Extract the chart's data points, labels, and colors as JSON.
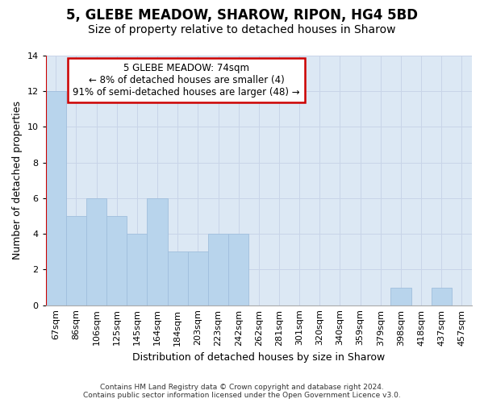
{
  "title": "5, GLEBE MEADOW, SHAROW, RIPON, HG4 5BD",
  "subtitle": "Size of property relative to detached houses in Sharow",
  "xlabel": "Distribution of detached houses by size in Sharow",
  "ylabel": "Number of detached properties",
  "categories": [
    "67sqm",
    "86sqm",
    "106sqm",
    "125sqm",
    "145sqm",
    "164sqm",
    "184sqm",
    "203sqm",
    "223sqm",
    "242sqm",
    "262sqm",
    "281sqm",
    "301sqm",
    "320sqm",
    "340sqm",
    "359sqm",
    "379sqm",
    "398sqm",
    "418sqm",
    "437sqm",
    "457sqm"
  ],
  "values": [
    12,
    5,
    6,
    5,
    4,
    6,
    3,
    3,
    4,
    4,
    0,
    0,
    0,
    0,
    0,
    0,
    0,
    1,
    0,
    1,
    0
  ],
  "bar_color": "#b8d4ec",
  "bar_edge_color": "#a0bedd",
  "annotation_line1": "5 GLEBE MEADOW: 74sqm",
  "annotation_line2": "← 8% of detached houses are smaller (4)",
  "annotation_line3": "91% of semi-detached houses are larger (48) →",
  "annotation_box_facecolor": "#ffffff",
  "annotation_box_edgecolor": "#cc0000",
  "redline_color": "#cc0000",
  "ylim": [
    0,
    14
  ],
  "yticks": [
    0,
    2,
    4,
    6,
    8,
    10,
    12,
    14
  ],
  "grid_color": "#c8d4e8",
  "background_color": "#dce8f4",
  "footer_line1": "Contains HM Land Registry data © Crown copyright and database right 2024.",
  "footer_line2": "Contains public sector information licensed under the Open Government Licence v3.0.",
  "title_fontsize": 12,
  "subtitle_fontsize": 10,
  "xlabel_fontsize": 9,
  "ylabel_fontsize": 9,
  "tick_fontsize": 8,
  "annot_fontsize": 8.5
}
